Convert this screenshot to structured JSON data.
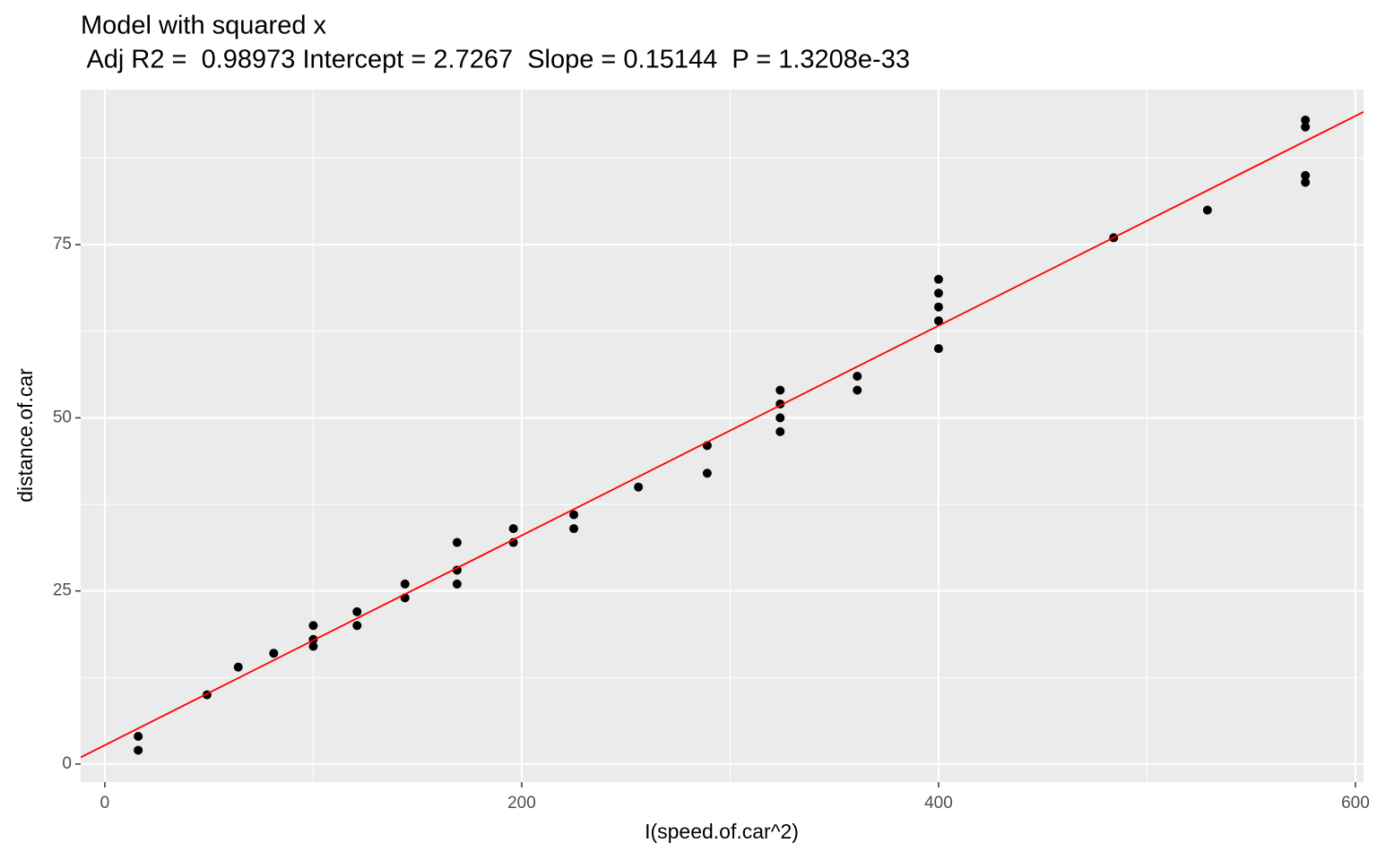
{
  "chart_data": {
    "type": "scatter",
    "title": "Model with squared x",
    "subtitle": " Adj R2 =  0.98973 Intercept = 2.7267  Slope = 0.15144  P = 1.3208e-33",
    "x_label": "I(speed.of.car^2)",
    "y_label": "distance.of.car",
    "x": [
      16,
      16,
      49,
      64,
      81,
      100,
      100,
      100,
      121,
      121,
      144,
      144,
      169,
      169,
      169,
      196,
      196,
      225,
      225,
      256,
      289,
      289,
      324,
      324,
      324,
      324,
      361,
      361,
      400,
      400,
      400,
      400,
      400,
      484,
      529,
      576,
      576,
      576,
      576
    ],
    "y": [
      4,
      2,
      10,
      14,
      16,
      20,
      18,
      17,
      22,
      20,
      26,
      24,
      32,
      28,
      26,
      34,
      32,
      36,
      34,
      40,
      46,
      42,
      54,
      52,
      50,
      48,
      56,
      54,
      70,
      68,
      66,
      64,
      60,
      76,
      80,
      93,
      92,
      85,
      84
    ],
    "color": "#000000",
    "fit": {
      "intercept": 2.7267,
      "slope": 0.15144,
      "color": "#ff0000"
    },
    "xlim": [
      -11.6,
      603.9
    ],
    "ylim": [
      -2.6,
      97.4
    ],
    "xticks": [
      0,
      200,
      400,
      600
    ],
    "yticks": [
      0,
      25,
      50,
      75
    ],
    "x_minor_grid": [
      100,
      300,
      500
    ],
    "y_minor_grid": [
      12.5,
      37.5,
      62.5,
      87.5
    ],
    "grid": true
  }
}
